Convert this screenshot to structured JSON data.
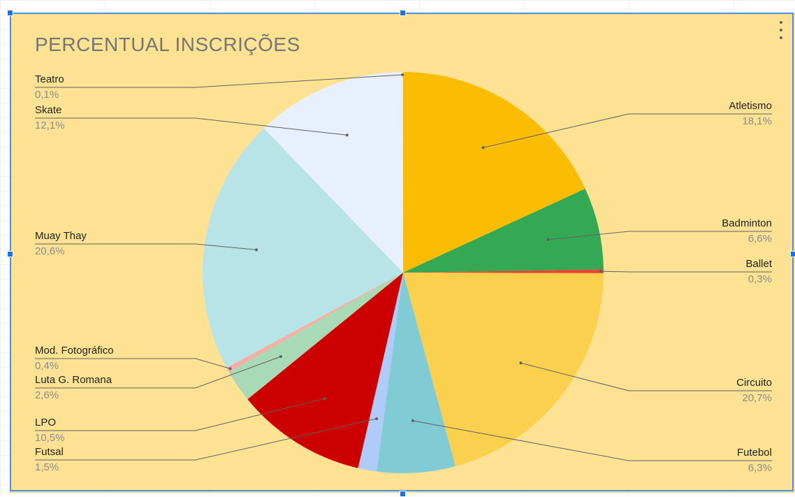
{
  "chart_data": {
    "type": "pie",
    "title": "PERCENTUAL INSCRIÇÕES",
    "slices": [
      {
        "name": "Atletismo",
        "percent_label": "18,1%",
        "value": 18.1,
        "color": "#fbbc04"
      },
      {
        "name": "Badminton",
        "percent_label": "6,6%",
        "value": 6.6,
        "color": "#34a853"
      },
      {
        "name": "Ballet",
        "percent_label": "0,3%",
        "value": 0.3,
        "color": "#ea4335"
      },
      {
        "name": "Circuito",
        "percent_label": "20,7%",
        "value": 20.7,
        "color": "#fcd04f"
      },
      {
        "name": "Futebol",
        "percent_label": "6,3%",
        "value": 6.3,
        "color": "#80cbd4"
      },
      {
        "name": "Futsal",
        "percent_label": "1,5%",
        "value": 1.5,
        "color": "#aecbfa"
      },
      {
        "name": "LPO",
        "percent_label": "10,5%",
        "value": 10.5,
        "color": "#cc0000"
      },
      {
        "name": "Luta G. Romana",
        "percent_label": "2,6%",
        "value": 2.6,
        "color": "#a8dab5"
      },
      {
        "name": "Mod. Fotográfico",
        "percent_label": "0,4%",
        "value": 0.4,
        "color": "#f6aea9"
      },
      {
        "name": "Muay Thay",
        "percent_label": "20,6%",
        "value": 20.6,
        "color": "#b8e4e8"
      },
      {
        "name": "Skate",
        "percent_label": "12,1%",
        "value": 12.1,
        "color": "#e8f0fe"
      },
      {
        "name": "Teatro",
        "percent_label": "0,1%",
        "value": 0.1,
        "color": "#fce8b2"
      }
    ],
    "legend": "none"
  }
}
